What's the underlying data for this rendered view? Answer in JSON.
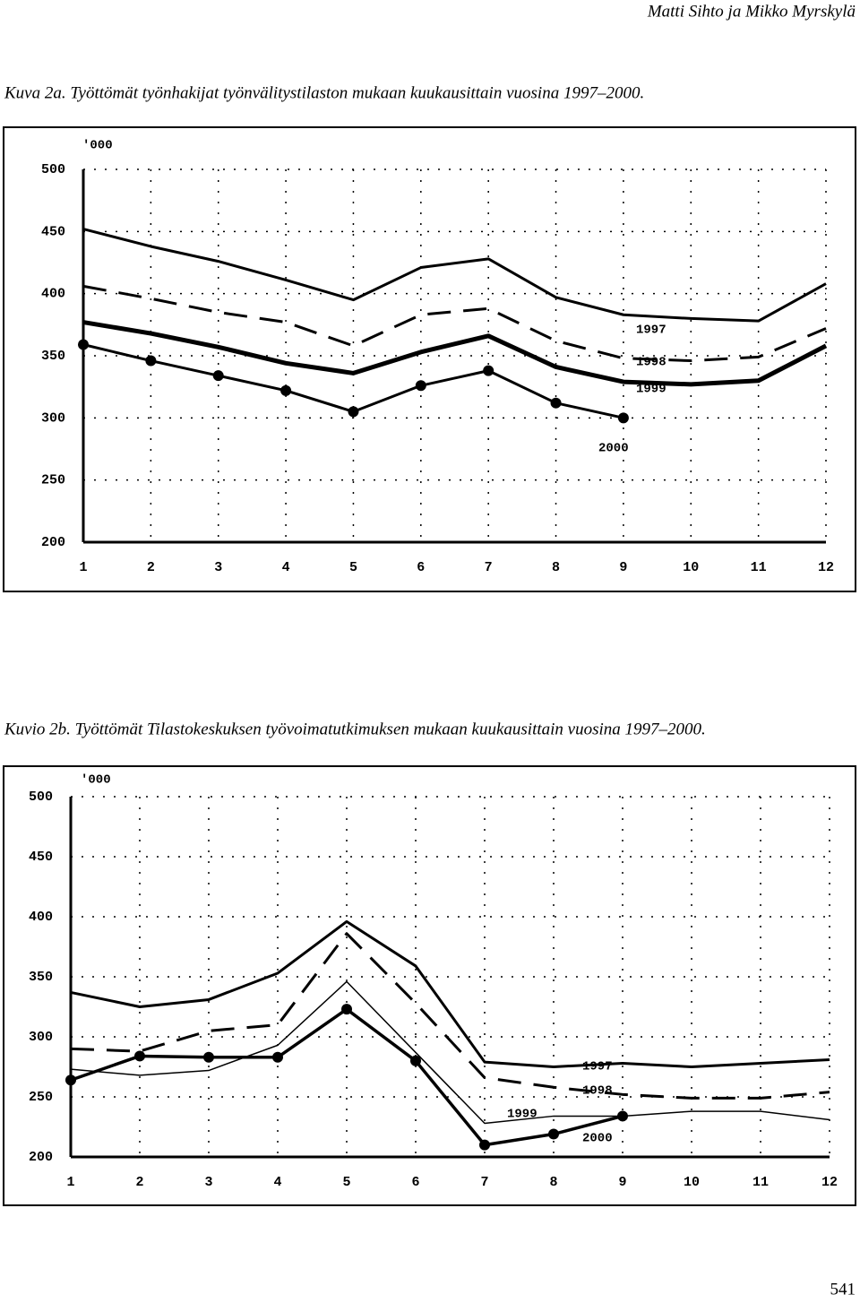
{
  "header": "Matti Sihto ja Mikko Myrskylä",
  "page_number": "541",
  "chart_data": [
    {
      "type": "line",
      "title": "Kuva 2a. Työttömät työnhakijat työnvälitystilaston mukaan kuukausittain vuosina 1997–2000.",
      "y_label": "'000",
      "categories": [
        "1",
        "2",
        "3",
        "4",
        "5",
        "6",
        "7",
        "8",
        "9",
        "10",
        "11",
        "12"
      ],
      "ylim": [
        200,
        500
      ],
      "yticks": [
        200,
        250,
        300,
        350,
        400,
        450,
        500
      ],
      "grid": true,
      "series": [
        {
          "name": "1997",
          "color": "#000",
          "style": "solid",
          "width": 3,
          "marker": false,
          "values": [
            452,
            438,
            426,
            411,
            395,
            421,
            428,
            397,
            383,
            380,
            378,
            408
          ]
        },
        {
          "name": "1998",
          "color": "#000",
          "style": "dashed",
          "width": 3,
          "marker": false,
          "values": [
            406,
            396,
            385,
            377,
            358,
            383,
            388,
            362,
            348,
            346,
            349,
            372
          ]
        },
        {
          "name": "1999",
          "color": "#000",
          "style": "solid",
          "width": 5,
          "marker": false,
          "values": [
            377,
            368,
            357,
            344,
            336,
            353,
            366,
            341,
            329,
            327,
            330,
            358
          ]
        },
        {
          "name": "2000",
          "color": "#000",
          "style": "solid",
          "width": 3,
          "marker": true,
          "values": [
            359,
            346,
            334,
            322,
            305,
            326,
            338,
            312,
            300,
            null,
            null,
            null
          ]
        }
      ]
    },
    {
      "type": "line",
      "title": "Kuvio 2b. Työttömät Tilastokeskuksen työvoimatutkimuksen mukaan kuukausittain vuosina 1997–2000.",
      "y_label": "'000",
      "categories": [
        "1",
        "2",
        "3",
        "4",
        "5",
        "6",
        "7",
        "8",
        "9",
        "10",
        "11",
        "12"
      ],
      "ylim": [
        200,
        500
      ],
      "yticks": [
        200,
        250,
        300,
        350,
        400,
        450,
        500
      ],
      "grid": true,
      "series": [
        {
          "name": "1997",
          "color": "#000",
          "style": "solid",
          "width": 3,
          "marker": false,
          "values": [
            337,
            325,
            331,
            353,
            396,
            359,
            279,
            275,
            278,
            275,
            278,
            281
          ]
        },
        {
          "name": "1998",
          "color": "#000",
          "style": "dashed",
          "width": 3,
          "marker": false,
          "values": [
            290,
            288,
            305,
            310,
            386,
            328,
            266,
            258,
            252,
            249,
            249,
            254
          ]
        },
        {
          "name": "1999",
          "color": "#000",
          "style": "solid",
          "width": 1.5,
          "marker": false,
          "values": [
            273,
            268,
            272,
            293,
            346,
            287,
            228,
            234,
            234,
            238,
            238,
            231
          ]
        },
        {
          "name": "2000",
          "color": "#000",
          "style": "solid",
          "width": 3.5,
          "marker": true,
          "values": [
            264,
            284,
            283,
            283,
            323,
            280,
            210,
            219,
            234,
            null,
            null,
            null
          ]
        }
      ]
    }
  ]
}
